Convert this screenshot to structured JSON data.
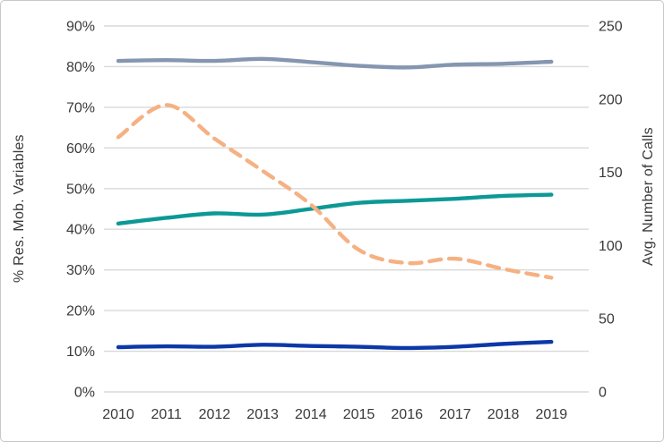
{
  "chart_data": {
    "type": "line",
    "title": "",
    "legend": false,
    "grid": true,
    "categories": [
      "2010",
      "2011",
      "2012",
      "2013",
      "2014",
      "2015",
      "2016",
      "2017",
      "2018",
      "2019"
    ],
    "left_axis": {
      "label": "% Res. Mob. Variables",
      "min": 0,
      "max": 90,
      "tick_values": [
        0,
        10,
        20,
        30,
        40,
        50,
        60,
        70,
        80,
        90
      ],
      "tick_labels": [
        "0%",
        "10%",
        "20%",
        "30%",
        "40%",
        "50%",
        "60%",
        "70%",
        "80%",
        "90%"
      ]
    },
    "right_axis": {
      "label": "Avg. Number of Calls",
      "min": 0,
      "max": 250,
      "tick_values": [
        0,
        50,
        100,
        150,
        200,
        250
      ],
      "tick_labels": [
        "0",
        "50",
        "100",
        "150",
        "200",
        "250"
      ]
    },
    "series": [
      {
        "id": "gray-blue-line",
        "axis": "left",
        "style": "solid",
        "color": "#8496B0",
        "values": [
          81.4,
          81.6,
          81.4,
          81.9,
          81.1,
          80.2,
          79.8,
          80.5,
          80.7,
          81.2
        ]
      },
      {
        "id": "teal-line",
        "axis": "left",
        "style": "solid",
        "color": "#0C9995",
        "values": [
          41.4,
          42.8,
          43.9,
          43.6,
          45.0,
          46.5,
          47.0,
          47.5,
          48.2,
          48.5
        ]
      },
      {
        "id": "dark-blue-line",
        "axis": "left",
        "style": "solid",
        "color": "#0C38A8",
        "values": [
          11.0,
          11.2,
          11.1,
          11.6,
          11.3,
          11.1,
          10.8,
          11.1,
          11.8,
          12.3
        ]
      },
      {
        "id": "orange-dashed-line",
        "axis": "right",
        "style": "dashed",
        "color": "#F5B183",
        "values": [
          174,
          196,
          173,
          151,
          128,
          97,
          88,
          91,
          84,
          78
        ]
      }
    ]
  },
  "colors": {
    "gridline": "#D9D9D9",
    "tick_text": "#3A3A3A",
    "frame_border": "#C9C7C7"
  }
}
